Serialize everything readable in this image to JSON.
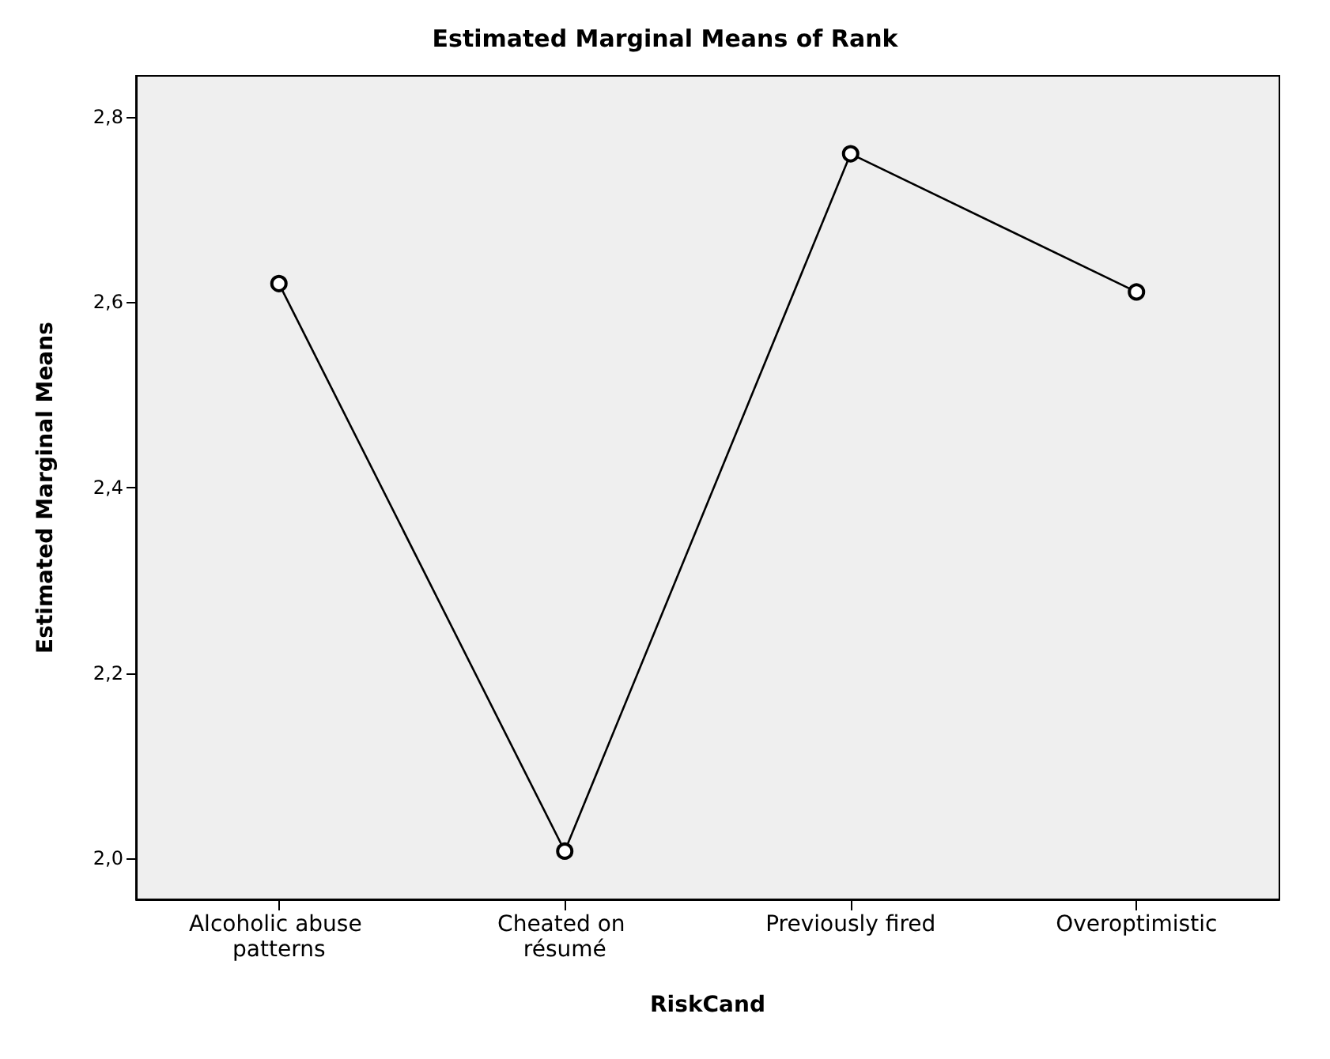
{
  "chart_data": {
    "type": "line",
    "title": "Estimated Marginal Means of Rank",
    "xlabel": "RiskCand",
    "ylabel": "Estimated Marginal Means",
    "categories": [
      "Alcoholic abuse patterns",
      "Cheated on résumé",
      "Previously fired",
      "Overoptimistic"
    ],
    "series": [
      {
        "color": "#000000",
        "values": [
          2.62,
          2.008,
          2.76,
          2.611
        ]
      }
    ],
    "ylim": [
      1.956,
      2.844
    ],
    "yticks": [
      {
        "value": 2.0,
        "label": "2,0"
      },
      {
        "value": 2.2,
        "label": "2,2"
      },
      {
        "value": 2.4,
        "label": "2,4"
      },
      {
        "value": 2.6,
        "label": "2,6"
      },
      {
        "value": 2.8,
        "label": "2,8"
      }
    ],
    "marker": "circle",
    "line_style": "solid",
    "grid": false
  }
}
